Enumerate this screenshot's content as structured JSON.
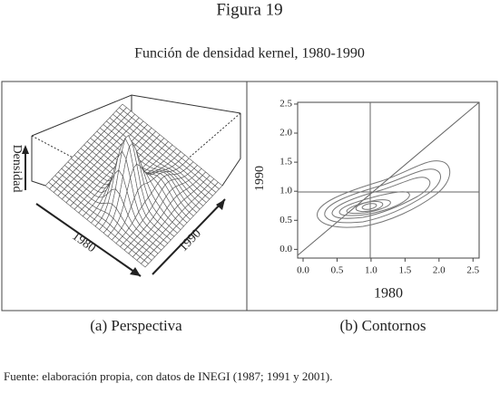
{
  "figure_label": "Figura 19",
  "title": "Función de densidad kernel, 1980-1990",
  "panels": [
    {
      "caption": "(a) Perspectiva",
      "axis_labels": {
        "z": "Densidad",
        "x": "1980",
        "y": "1990"
      }
    },
    {
      "caption": "(b) Contornos",
      "xlabel": "1980",
      "ylabel": "1990",
      "xlim": [
        -0.08,
        2.59
      ],
      "ylim": [
        -0.15,
        2.53
      ],
      "xticks": [
        {
          "value": 0,
          "label": "0.0"
        },
        {
          "value": 0.5,
          "label": "0.5"
        },
        {
          "value": 1,
          "label": "1.0"
        },
        {
          "value": 1.5,
          "label": "1.5"
        },
        {
          "value": 2,
          "label": "2.0"
        },
        {
          "value": 2.5,
          "label": "2.5"
        }
      ],
      "yticks": [
        {
          "value": 0,
          "label": "0.0"
        },
        {
          "value": 0.5,
          "label": "0.5"
        },
        {
          "value": 1,
          "label": "1.0"
        },
        {
          "value": 1.5,
          "label": "1.5"
        },
        {
          "value": 2,
          "label": "2.0"
        },
        {
          "value": 2.5,
          "label": "2.5"
        }
      ]
    }
  ],
  "source": "Fuente: elaboración propia, con datos de INEGI (1987; 1991 y 2001)."
}
